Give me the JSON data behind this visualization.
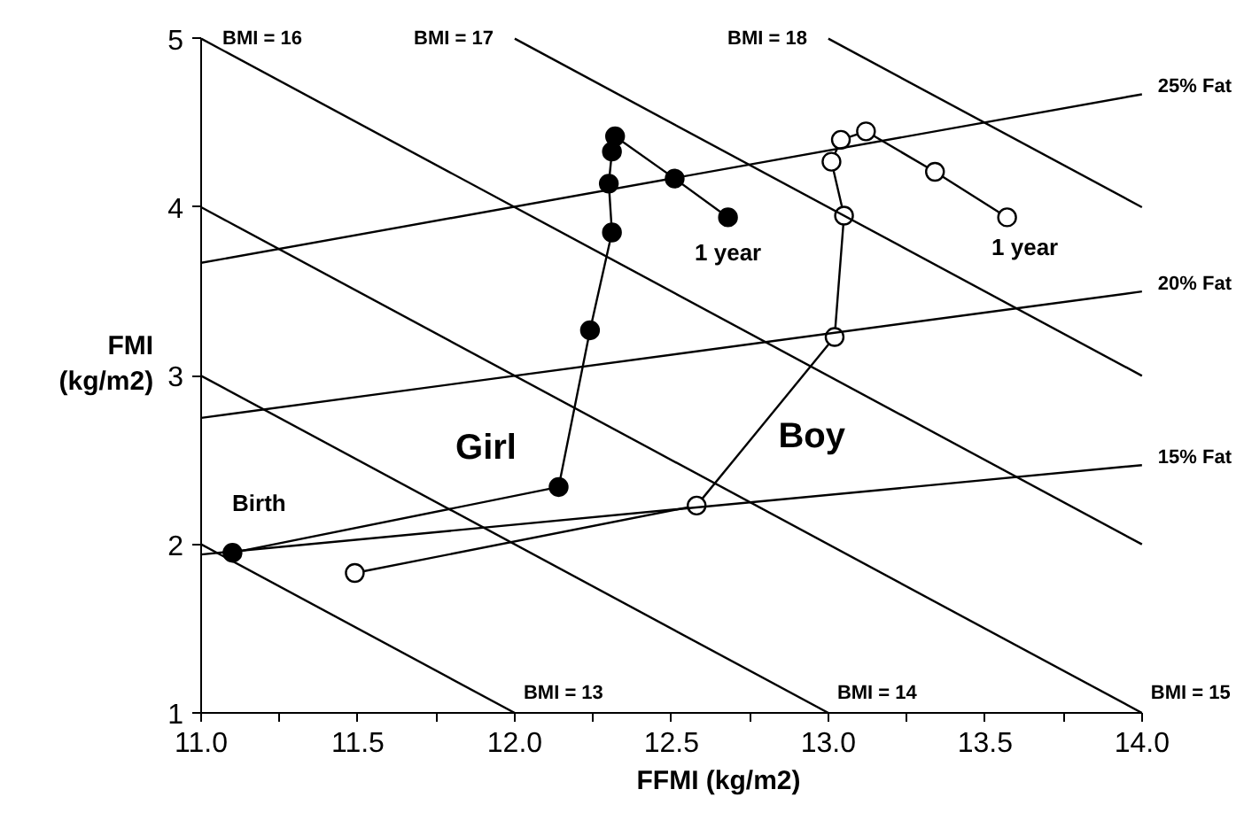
{
  "chart_data": {
    "type": "line",
    "xlabel": "FFMI (kg/m2)",
    "ylabel": "FMI\n(kg/m2)",
    "xlim": [
      11,
      14
    ],
    "ylim": [
      1,
      5
    ],
    "xticks": [
      {
        "value": 11,
        "label": "11.0"
      },
      {
        "value": 11.25,
        "label": null
      },
      {
        "value": 11.5,
        "label": "11.5"
      },
      {
        "value": 11.75,
        "label": null
      },
      {
        "value": 12,
        "label": "12.0"
      },
      {
        "value": 12.25,
        "label": null
      },
      {
        "value": 12.5,
        "label": "12.5"
      },
      {
        "value": 12.75,
        "label": null
      },
      {
        "value": 13,
        "label": "13.0"
      },
      {
        "value": 13.25,
        "label": null
      },
      {
        "value": 13.5,
        "label": "13.5"
      },
      {
        "value": 13.75,
        "label": null
      },
      {
        "value": 14,
        "label": "14.0"
      }
    ],
    "yticks": [
      1,
      2,
      3,
      4,
      5
    ],
    "grid": false,
    "series": [
      {
        "name": "Girl",
        "color": "#000000",
        "marker": "circle",
        "x": [
          11.1,
          12.14,
          12.24,
          12.31,
          12.3,
          12.31,
          12.32,
          12.51,
          12.68
        ],
        "values": [
          1.95,
          2.34,
          3.27,
          3.85,
          4.14,
          4.33,
          4.42,
          4.17,
          3.94
        ]
      },
      {
        "name": "Boy",
        "color": "#ffffff",
        "marker": "circle",
        "x": [
          11.49,
          12.58,
          13.02,
          13.05,
          13.01,
          13.04,
          13.12,
          13.34,
          13.57
        ],
        "values": [
          1.83,
          2.23,
          3.23,
          3.95,
          4.27,
          4.4,
          4.45,
          4.21,
          3.94
        ]
      },
      {
        "name": "BMI = 13",
        "color": "#000000",
        "marker": "none",
        "x": [
          11,
          12
        ],
        "values": [
          2,
          1
        ]
      },
      {
        "name": "BMI = 14",
        "color": "#000000",
        "marker": "none",
        "x": [
          11,
          13
        ],
        "values": [
          3,
          1
        ]
      },
      {
        "name": "BMI = 15",
        "color": "#000000",
        "marker": "none",
        "x": [
          11,
          14
        ],
        "values": [
          4,
          1
        ]
      },
      {
        "name": "BMI = 16",
        "color": "#000000",
        "marker": "none",
        "x": [
          11,
          14
        ],
        "values": [
          5,
          2
        ]
      },
      {
        "name": "BMI = 17",
        "color": "#000000",
        "marker": "none",
        "x": [
          12,
          14
        ],
        "values": [
          5,
          3
        ]
      },
      {
        "name": "BMI = 18",
        "color": "#000000",
        "marker": "none",
        "x": [
          13,
          14
        ],
        "values": [
          5,
          4
        ]
      },
      {
        "name": "15% Fat",
        "color": "#000000",
        "marker": "none",
        "x": [
          11,
          14
        ],
        "values": [
          1.94,
          2.47
        ]
      },
      {
        "name": "20% Fat",
        "color": "#000000",
        "marker": "none",
        "x": [
          11,
          14
        ],
        "values": [
          2.75,
          3.5
        ]
      },
      {
        "name": "25% Fat",
        "color": "#000000",
        "marker": "none",
        "x": [
          11,
          14
        ],
        "values": [
          3.67,
          4.67
        ]
      }
    ],
    "annotations": [
      "Birth",
      "1 year",
      "1 year"
    ]
  }
}
